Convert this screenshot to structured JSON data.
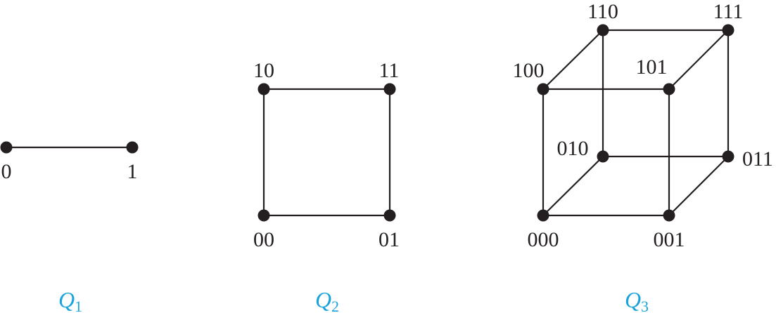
{
  "colors": {
    "ink": "#231f20",
    "accent": "#1aa3dc"
  },
  "graphs": [
    {
      "id": "q1",
      "label": {
        "main": "Q",
        "sub": "1"
      },
      "vertices": [
        "0",
        "1"
      ],
      "edges": [
        [
          "0",
          "1"
        ]
      ]
    },
    {
      "id": "q2",
      "label": {
        "main": "Q",
        "sub": "2"
      },
      "vertices": [
        "00",
        "01",
        "10",
        "11"
      ],
      "edges": [
        [
          "00",
          "01"
        ],
        [
          "00",
          "10"
        ],
        [
          "01",
          "11"
        ],
        [
          "10",
          "11"
        ]
      ]
    },
    {
      "id": "q3",
      "label": {
        "main": "Q",
        "sub": "3"
      },
      "vertices": [
        "000",
        "001",
        "010",
        "011",
        "100",
        "101",
        "110",
        "111"
      ],
      "edges": [
        [
          "000",
          "001"
        ],
        [
          "000",
          "100"
        ],
        [
          "000",
          "010"
        ],
        [
          "001",
          "101"
        ],
        [
          "001",
          "011"
        ],
        [
          "100",
          "101"
        ],
        [
          "100",
          "110"
        ],
        [
          "101",
          "111"
        ],
        [
          "010",
          "011"
        ],
        [
          "010",
          "110"
        ],
        [
          "011",
          "111"
        ],
        [
          "110",
          "111"
        ]
      ]
    }
  ]
}
